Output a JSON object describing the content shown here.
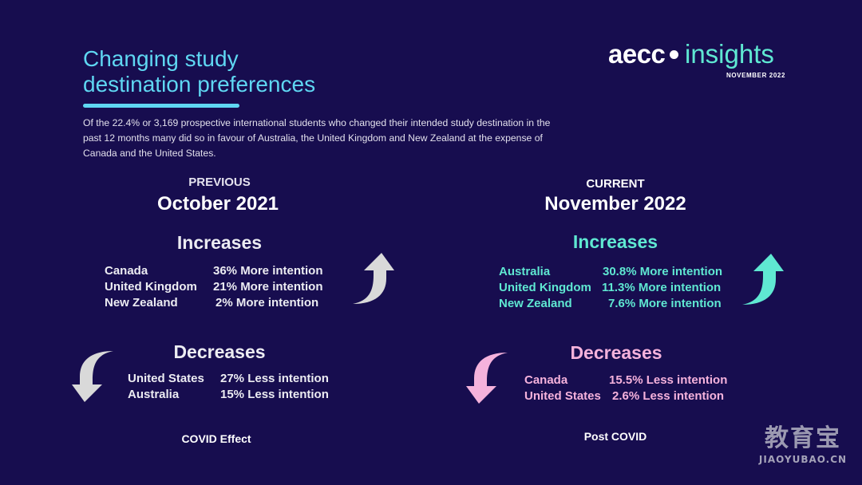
{
  "header": {
    "title_lines": [
      "Changing study",
      "destination preferences"
    ],
    "intro": "Of the 22.4% or 3,169 prospective international students who changed their intended study destination in the past 12 months many did so in favour of Australia, the United Kingdom and New Zealand at the expense of Canada and the United States."
  },
  "logo": {
    "brand": "aecc",
    "product": "insights",
    "date": "NOVEMBER 2022"
  },
  "previous": {
    "label": "PREVIOUS",
    "date": "October 2021",
    "increases_title": "Increases",
    "increases": [
      {
        "name": "Canada",
        "value": "36% More intention"
      },
      {
        "name": "United Kingdom",
        "value": "21% More intention"
      },
      {
        "name": "New Zealand",
        "value": "2% More intention"
      }
    ],
    "decreases_title": "Decreases",
    "decreases": [
      {
        "name": "United States",
        "value": "27% Less intention"
      },
      {
        "name": "Australia",
        "value": "15% Less intention"
      }
    ],
    "footer": "COVID Effect"
  },
  "current": {
    "label": "CURRENT",
    "date": "November 2022",
    "increases_title": "Increases",
    "increases": [
      {
        "name": "Australia",
        "value": "30.8% More intention"
      },
      {
        "name": "United Kingdom",
        "value": "11.3% More intention"
      },
      {
        "name": "New Zealand",
        "value": "7.6% More intention"
      }
    ],
    "decreases_title": "Decreases",
    "decreases": [
      {
        "name": "Canada",
        "value": "15.5% Less intention"
      },
      {
        "name": "United States",
        "value": "2.6% Less intention"
      }
    ],
    "footer": "Post COVID"
  },
  "watermark": {
    "main": "教育宝",
    "sub": "JIAOYUBAO.CN"
  },
  "colors": {
    "background": "#170d4f",
    "title_accent": "#5fd7f2",
    "current_increase": "#5fe8d2",
    "current_decrease": "#f5b2dc",
    "previous_arrow": "#d9d9d9"
  },
  "icons": {
    "previous_up": "curved-up-arrow-icon",
    "previous_down": "curved-down-arrow-icon",
    "current_up": "curved-up-arrow-icon",
    "current_down": "curved-down-arrow-icon"
  }
}
